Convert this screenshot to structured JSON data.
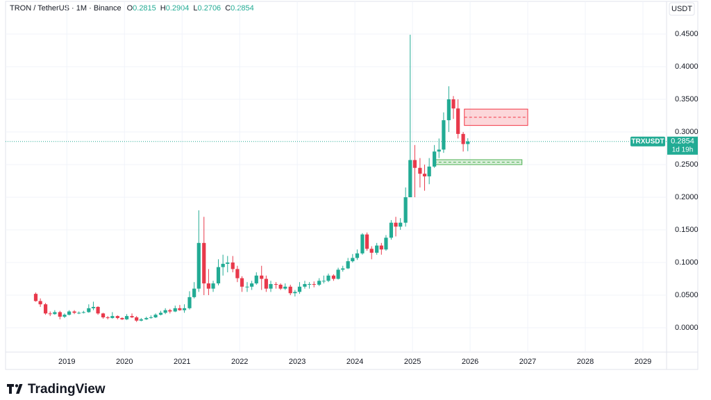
{
  "chart_data": {
    "type": "candlestick",
    "symbol": "TRON / TetherUS · 1M · Binance",
    "ohlc_labels": [
      "O",
      "H",
      "L",
      "C"
    ],
    "currency": "USDT",
    "ticker": "TRXUSDT",
    "countdown": "1d 19h",
    "brand": "TradingView",
    "up_color": "#22ab94",
    "down_color": "#e8394b",
    "grid": true,
    "xlim": [
      2017.96,
      2029.41
    ],
    "xticks": [
      2019,
      2020,
      2021,
      2022,
      2023,
      2024,
      2025,
      2026,
      2027,
      2028,
      2029
    ],
    "ylim": [
      -0.0372,
      0.4979
    ],
    "yticks": [
      {
        "value": 0,
        "label": "0.0000"
      },
      {
        "value": 0.05,
        "label": "0.0500"
      },
      {
        "value": 0.1,
        "label": "0.1000"
      },
      {
        "value": 0.15,
        "label": "0.1500"
      },
      {
        "value": 0.2,
        "label": "0.2000"
      },
      {
        "value": 0.25,
        "label": "0.2500"
      },
      {
        "value": 0.3,
        "label": "0.3000"
      },
      {
        "value": 0.35,
        "label": "0.3500"
      },
      {
        "value": 0.4,
        "label": "0.4000"
      },
      {
        "value": 0.45,
        "label": "0.4500"
      }
    ],
    "x": [
      2018.46,
      2018.54,
      2018.63,
      2018.71,
      2018.79,
      2018.88,
      2018.96,
      2019.04,
      2019.13,
      2019.21,
      2019.29,
      2019.38,
      2019.46,
      2019.54,
      2019.63,
      2019.71,
      2019.79,
      2019.88,
      2019.96,
      2020.04,
      2020.13,
      2020.21,
      2020.29,
      2020.38,
      2020.46,
      2020.54,
      2020.63,
      2020.71,
      2020.79,
      2020.88,
      2020.96,
      2021.04,
      2021.13,
      2021.21,
      2021.29,
      2021.38,
      2021.46,
      2021.54,
      2021.63,
      2021.71,
      2021.79,
      2021.88,
      2021.96,
      2022.04,
      2022.13,
      2022.21,
      2022.29,
      2022.38,
      2022.46,
      2022.54,
      2022.63,
      2022.71,
      2022.79,
      2022.88,
      2022.96,
      2023.04,
      2023.13,
      2023.21,
      2023.29,
      2023.38,
      2023.46,
      2023.54,
      2023.63,
      2023.71,
      2023.79,
      2023.88,
      2023.96,
      2024.04,
      2024.13,
      2024.21,
      2024.29,
      2024.38,
      2024.46,
      2024.54,
      2024.63,
      2024.71,
      2024.79,
      2024.88,
      2024.96,
      2025.04,
      2025.13,
      2025.21,
      2025.29,
      2025.38,
      2025.46,
      2025.54,
      2025.63,
      2025.71,
      2025.79,
      2025.88,
      2025.96
    ],
    "open": [
      0.052,
      0.041,
      0.036,
      0.022,
      0.021,
      0.024,
      0.017,
      0.02,
      0.025,
      0.023,
      0.023,
      0.024,
      0.03,
      0.032,
      0.022,
      0.016,
      0.015,
      0.018,
      0.015,
      0.013,
      0.018,
      0.016,
      0.011,
      0.013,
      0.015,
      0.016,
      0.02,
      0.023,
      0.027,
      0.025,
      0.03,
      0.027,
      0.03,
      0.047,
      0.06,
      0.13,
      0.068,
      0.06,
      0.068,
      0.093,
      0.098,
      0.1,
      0.09,
      0.076,
      0.063,
      0.063,
      0.068,
      0.08,
      0.075,
      0.06,
      0.067,
      0.066,
      0.06,
      0.063,
      0.053,
      0.055,
      0.063,
      0.067,
      0.067,
      0.066,
      0.072,
      0.072,
      0.08,
      0.075,
      0.089,
      0.091,
      0.102,
      0.107,
      0.114,
      0.143,
      0.121,
      0.115,
      0.126,
      0.12,
      0.138,
      0.161,
      0.155,
      0.161,
      0.2,
      0.257,
      0.245,
      0.236,
      0.232,
      0.247,
      0.27,
      0.273,
      0.318,
      0.35,
      0.336,
      0.297,
      0.2815
    ],
    "high": [
      0.054,
      0.045,
      0.038,
      0.025,
      0.027,
      0.026,
      0.022,
      0.027,
      0.027,
      0.025,
      0.026,
      0.036,
      0.04,
      0.033,
      0.023,
      0.018,
      0.024,
      0.019,
      0.016,
      0.021,
      0.022,
      0.018,
      0.015,
      0.017,
      0.019,
      0.022,
      0.026,
      0.03,
      0.029,
      0.034,
      0.035,
      0.036,
      0.056,
      0.07,
      0.18,
      0.17,
      0.09,
      0.072,
      0.105,
      0.112,
      0.11,
      0.11,
      0.095,
      0.079,
      0.07,
      0.072,
      0.085,
      0.095,
      0.08,
      0.072,
      0.07,
      0.068,
      0.068,
      0.066,
      0.058,
      0.07,
      0.072,
      0.07,
      0.071,
      0.076,
      0.08,
      0.083,
      0.082,
      0.092,
      0.095,
      0.107,
      0.113,
      0.12,
      0.145,
      0.146,
      0.125,
      0.13,
      0.13,
      0.142,
      0.165,
      0.17,
      0.168,
      0.215,
      0.449,
      0.28,
      0.26,
      0.25,
      0.26,
      0.28,
      0.29,
      0.33,
      0.37,
      0.355,
      0.35,
      0.3,
      0.2904
    ],
    "low": [
      0.04,
      0.032,
      0.02,
      0.018,
      0.02,
      0.013,
      0.015,
      0.019,
      0.021,
      0.021,
      0.022,
      0.023,
      0.027,
      0.02,
      0.014,
      0.013,
      0.014,
      0.013,
      0.012,
      0.012,
      0.015,
      0.009,
      0.01,
      0.012,
      0.014,
      0.015,
      0.019,
      0.021,
      0.022,
      0.024,
      0.026,
      0.023,
      0.028,
      0.045,
      0.055,
      0.05,
      0.05,
      0.055,
      0.065,
      0.08,
      0.085,
      0.085,
      0.07,
      0.055,
      0.055,
      0.058,
      0.066,
      0.058,
      0.055,
      0.055,
      0.06,
      0.058,
      0.058,
      0.05,
      0.048,
      0.052,
      0.06,
      0.06,
      0.062,
      0.064,
      0.068,
      0.07,
      0.072,
      0.074,
      0.086,
      0.09,
      0.1,
      0.104,
      0.112,
      0.118,
      0.105,
      0.112,
      0.112,
      0.118,
      0.135,
      0.14,
      0.15,
      0.155,
      0.2,
      0.2,
      0.215,
      0.21,
      0.22,
      0.245,
      0.26,
      0.268,
      0.3,
      0.32,
      0.29,
      0.27,
      0.2706
    ],
    "close": [
      0.041,
      0.036,
      0.022,
      0.021,
      0.024,
      0.017,
      0.02,
      0.025,
      0.023,
      0.023,
      0.024,
      0.03,
      0.032,
      0.022,
      0.016,
      0.015,
      0.018,
      0.015,
      0.013,
      0.018,
      0.016,
      0.011,
      0.013,
      0.015,
      0.016,
      0.02,
      0.023,
      0.027,
      0.025,
      0.03,
      0.027,
      0.03,
      0.047,
      0.06,
      0.13,
      0.068,
      0.06,
      0.068,
      0.093,
      0.098,
      0.1,
      0.09,
      0.076,
      0.063,
      0.063,
      0.068,
      0.08,
      0.075,
      0.06,
      0.067,
      0.066,
      0.06,
      0.063,
      0.053,
      0.055,
      0.063,
      0.067,
      0.067,
      0.066,
      0.072,
      0.072,
      0.08,
      0.075,
      0.089,
      0.091,
      0.102,
      0.107,
      0.114,
      0.143,
      0.121,
      0.115,
      0.126,
      0.12,
      0.138,
      0.161,
      0.155,
      0.161,
      0.2,
      0.257,
      0.245,
      0.236,
      0.232,
      0.247,
      0.27,
      0.273,
      0.318,
      0.35,
      0.336,
      0.297,
      0.2815,
      0.2854
    ],
    "zones": [
      {
        "start": 2025.9,
        "end": 2027.0,
        "top": 0.335,
        "bottom": 0.31,
        "color": "#f23645"
      },
      {
        "start": 2025.37,
        "end": 2026.9,
        "top": 0.2575,
        "bottom": 0.25,
        "color": "#4caf50"
      }
    ]
  }
}
